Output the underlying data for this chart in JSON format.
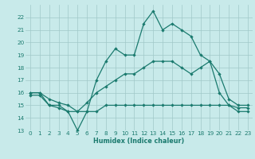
{
  "x": [
    0,
    1,
    2,
    3,
    4,
    5,
    6,
    7,
    8,
    9,
    10,
    11,
    12,
    13,
    14,
    15,
    16,
    17,
    18,
    19,
    20,
    21,
    22,
    23
  ],
  "line_max": [
    16,
    16,
    15,
    15,
    14.5,
    13,
    14.5,
    17,
    18.5,
    19.5,
    19,
    19,
    21.5,
    22.5,
    21,
    21.5,
    21,
    20.5,
    19,
    18.5,
    16,
    15,
    14.5,
    14.5
  ],
  "line_avg": [
    16,
    16,
    15.5,
    15.2,
    15,
    14.5,
    15.2,
    16,
    16.5,
    17,
    17.5,
    17.5,
    18,
    18.5,
    18.5,
    18.5,
    18,
    17.5,
    18,
    18.5,
    17.5,
    15.5,
    15,
    15
  ],
  "line_min": [
    15.8,
    15.8,
    15,
    14.8,
    14.5,
    14.5,
    14.5,
    14.5,
    15,
    15,
    15,
    15,
    15,
    15,
    15,
    15,
    15,
    15,
    15,
    15,
    15,
    15,
    14.8,
    14.8
  ],
  "xlabel": "Humidex (Indice chaleur)",
  "ylim_min": 13,
  "ylim_max": 23,
  "yticks": [
    13,
    14,
    15,
    16,
    17,
    18,
    19,
    20,
    21,
    22
  ],
  "xticks": [
    0,
    1,
    2,
    3,
    4,
    5,
    6,
    7,
    8,
    9,
    10,
    11,
    12,
    13,
    14,
    15,
    16,
    17,
    18,
    19,
    20,
    21,
    22,
    23
  ],
  "line_color": "#1a7a6e",
  "bg_color": "#c8eaea",
  "grid_color": "#a0c8c8",
  "markersize": 2.2,
  "linewidth": 0.9,
  "tick_fontsize": 5.2,
  "xlabel_fontsize": 5.8
}
